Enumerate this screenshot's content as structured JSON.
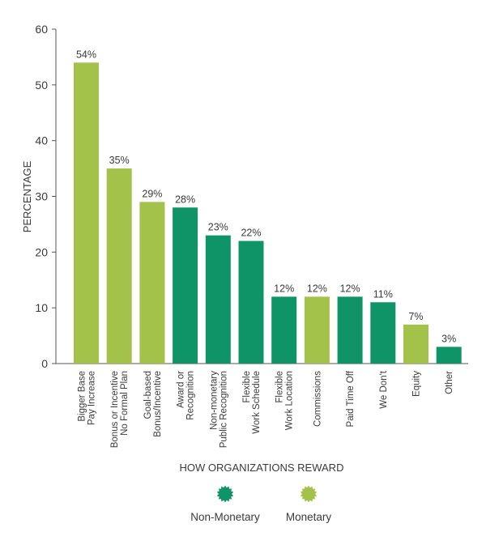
{
  "chart_data": {
    "type": "bar",
    "title": "",
    "xlabel": "HOW ORGANIZATIONS REWARD",
    "ylabel": "PERCENTAGE",
    "ylim": [
      0,
      60
    ],
    "yticks": [
      0,
      10,
      20,
      30,
      40,
      50,
      60
    ],
    "grid": false,
    "categories": [
      [
        "Bigger Base",
        "Pay Increase"
      ],
      [
        "Bonus or Incentive",
        "No Formal Plan"
      ],
      [
        "Goal-based",
        "Bonus/Incentive"
      ],
      [
        "Award or",
        "Recognition"
      ],
      [
        "Non-monetary",
        "Public Recognition"
      ],
      [
        "Flexible",
        "Work Schedule"
      ],
      [
        "Flexible",
        "Work Location"
      ],
      [
        "Commissions"
      ],
      [
        "Paid Time Off"
      ],
      [
        "We Don't"
      ],
      [
        "Equity"
      ],
      [
        "Other"
      ]
    ],
    "values": [
      54,
      35,
      29,
      28,
      23,
      22,
      12,
      12,
      12,
      11,
      7,
      3
    ],
    "value_labels": [
      "54%",
      "35%",
      "29%",
      "28%",
      "23%",
      "22%",
      "12%",
      "12%",
      "12%",
      "11%",
      "7%",
      "3%"
    ],
    "groups": [
      "monetary",
      "monetary",
      "monetary",
      "non-monetary",
      "non-monetary",
      "non-monetary",
      "non-monetary",
      "monetary",
      "non-monetary",
      "non-monetary",
      "monetary",
      "non-monetary"
    ],
    "legend": [
      {
        "key": "non-monetary",
        "label": "Non-Monetary",
        "color": "#0f9467"
      },
      {
        "key": "monetary",
        "label": "Monetary",
        "color": "#a3c24a"
      }
    ],
    "legend_position": "bottom"
  }
}
